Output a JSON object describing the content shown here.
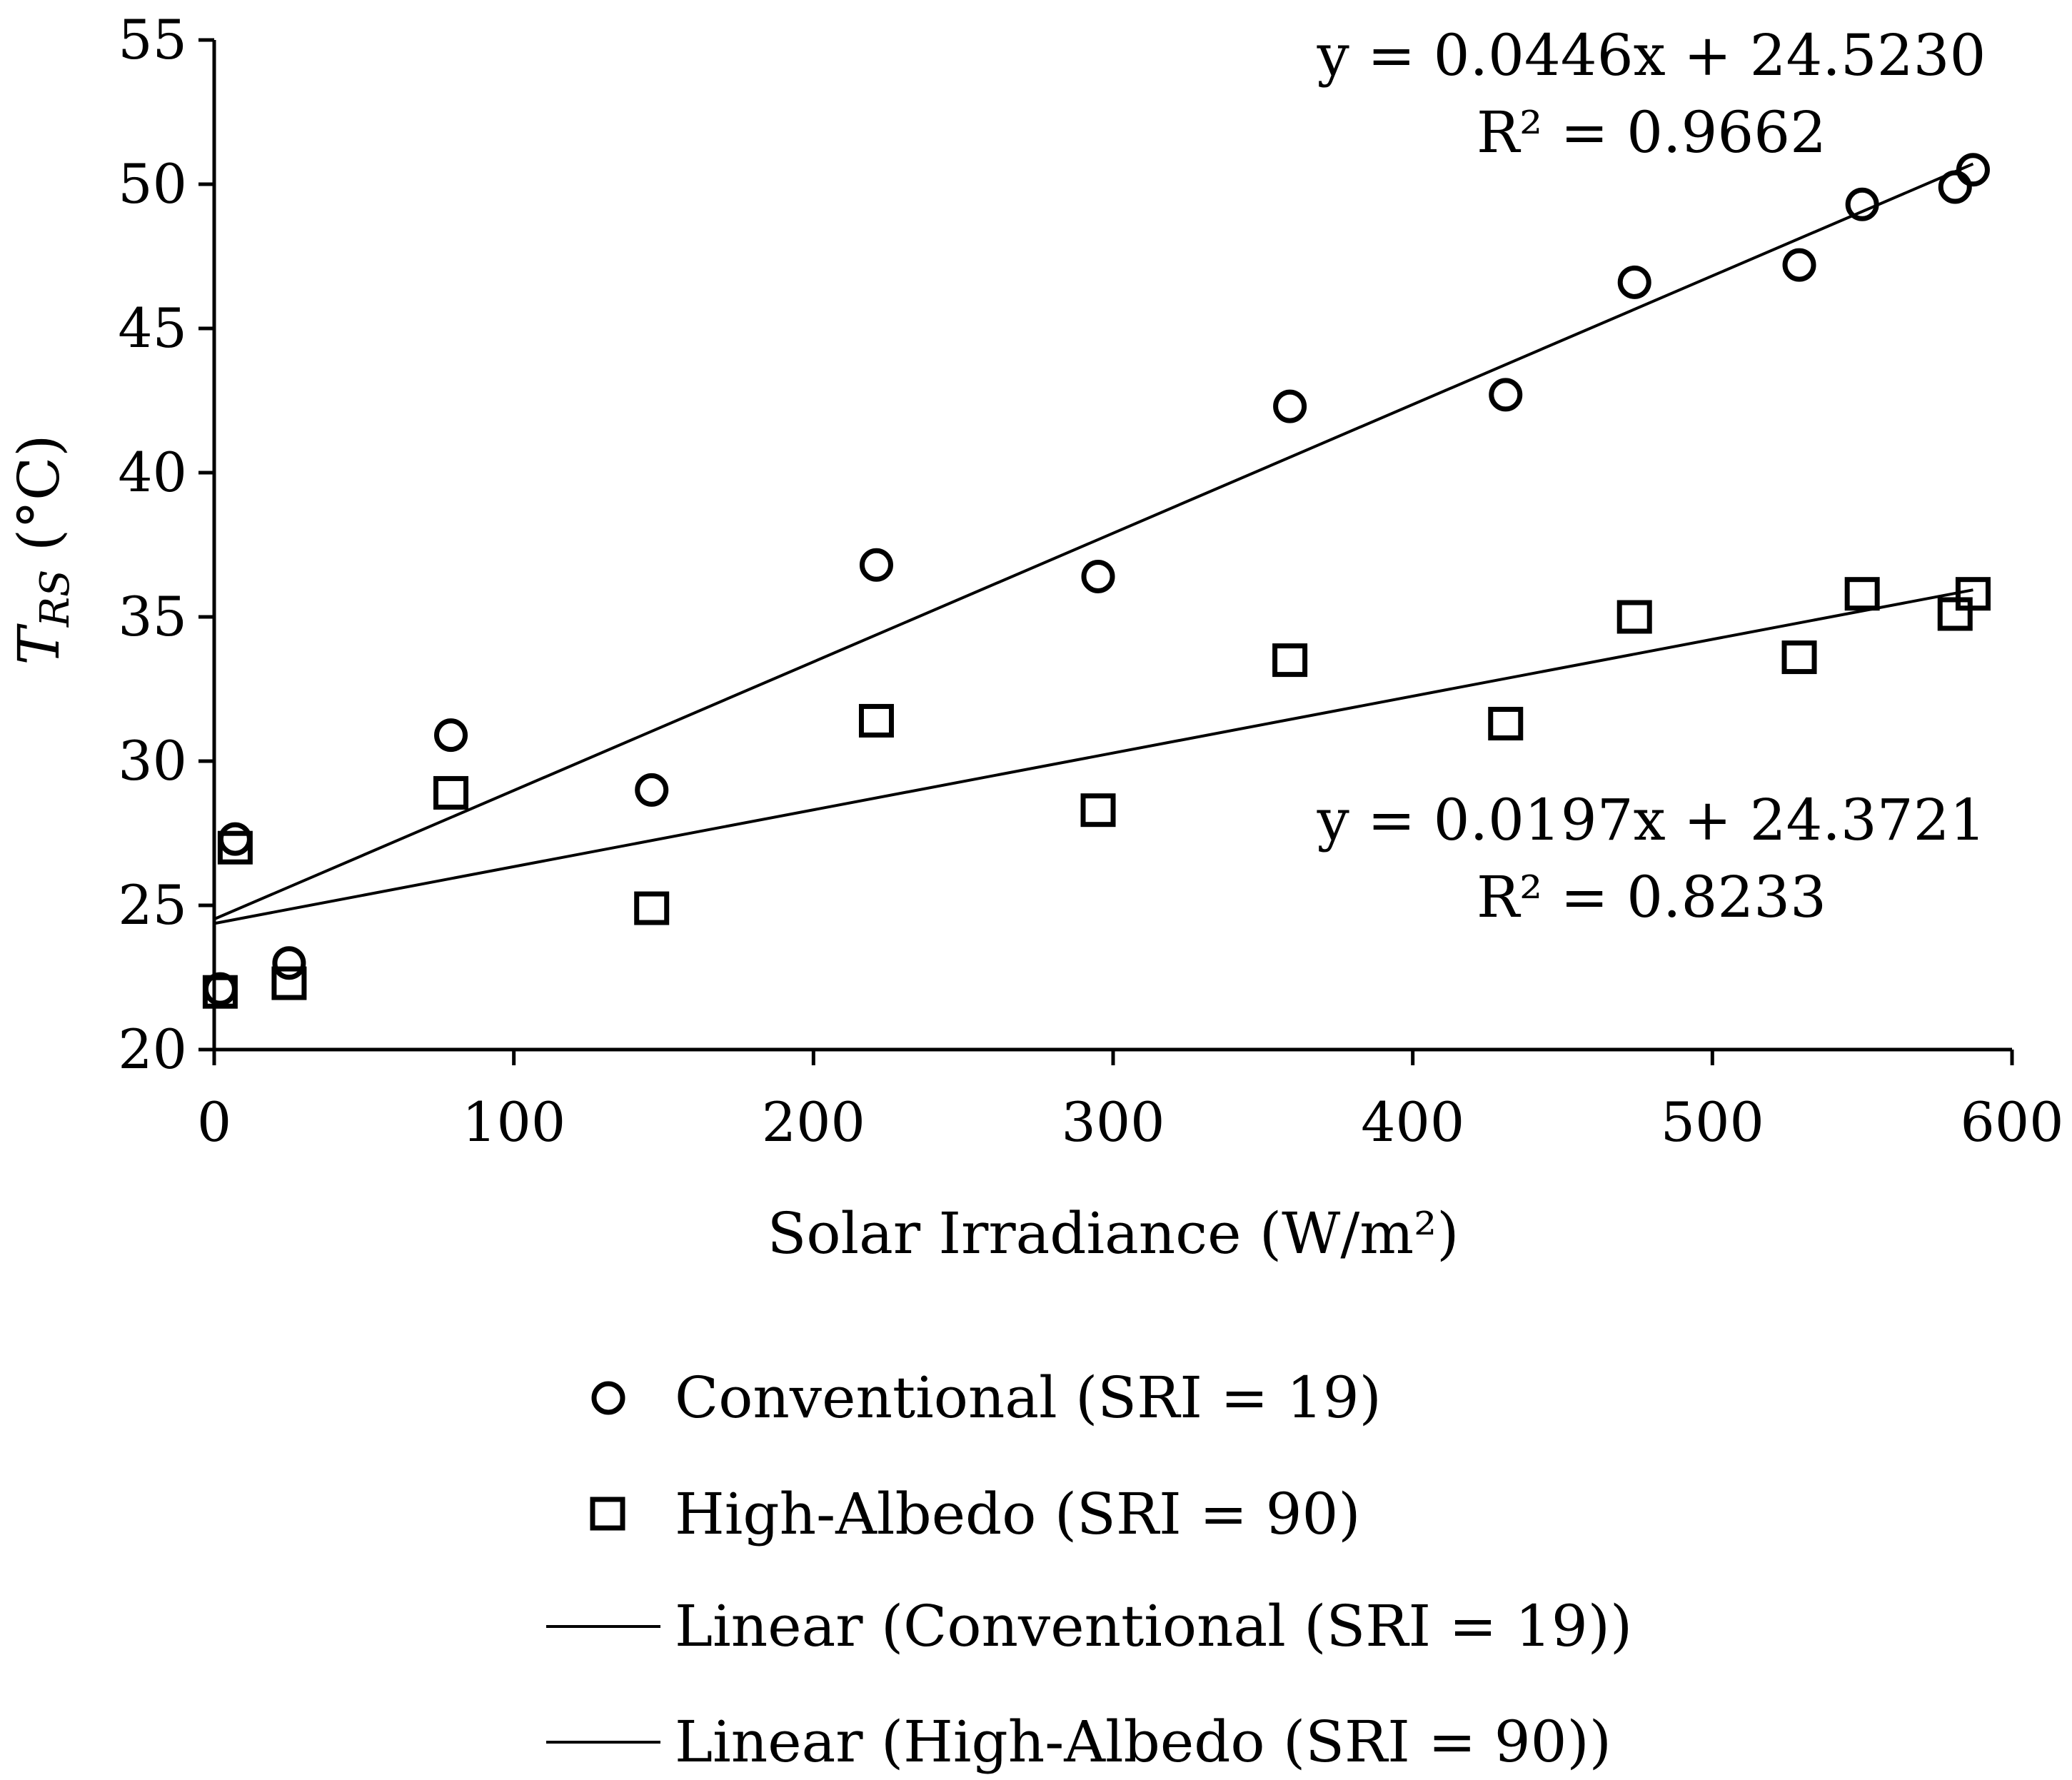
{
  "chart_data": {
    "type": "scatter",
    "title": "",
    "xlabel": "Solar Irradiance (W/m²)",
    "ylabel": {
      "main": "T",
      "subscript": "RS",
      "unit": " (°C)"
    },
    "xlim": [
      0,
      600
    ],
    "ylim": [
      20,
      55
    ],
    "xticks": [
      0,
      100,
      200,
      300,
      400,
      500,
      600
    ],
    "yticks": [
      20,
      25,
      30,
      35,
      40,
      45,
      50,
      55
    ],
    "grid": false,
    "legend_position": "bottom",
    "series": [
      {
        "name": "Conventional (SRI = 19)",
        "marker": "circle",
        "x": [
          2,
          7,
          25,
          79,
          146,
          221,
          295,
          359,
          431,
          474,
          529,
          550,
          581,
          587
        ],
        "y": [
          22.1,
          27.3,
          23.0,
          30.9,
          29.0,
          36.8,
          36.4,
          42.3,
          42.7,
          46.6,
          47.2,
          49.3,
          49.9,
          50.5
        ]
      },
      {
        "name": "High-Albedo (SRI = 90)",
        "marker": "square",
        "x": [
          2,
          7,
          25,
          79,
          146,
          221,
          295,
          359,
          431,
          474,
          529,
          550,
          581,
          587
        ],
        "y": [
          22.0,
          27.0,
          22.3,
          28.9,
          24.9,
          31.4,
          28.3,
          33.5,
          31.3,
          35.0,
          33.6,
          35.8,
          35.1,
          35.8
        ]
      }
    ],
    "trendlines": [
      {
        "name": "Linear (Conventional (SRI = 19))",
        "slope": 0.0446,
        "intercept": 24.523,
        "x_range": [
          0,
          587
        ],
        "equation": "y = 0.0446x + 24.5230",
        "r2": "R² = 0.9662"
      },
      {
        "name": "Linear (High-Albedo (SRI = 90))",
        "slope": 0.0197,
        "intercept": 24.3721,
        "x_range": [
          0,
          587
        ],
        "equation": "y = 0.0197x + 24.3721",
        "r2": "R² = 0.8233"
      }
    ]
  }
}
